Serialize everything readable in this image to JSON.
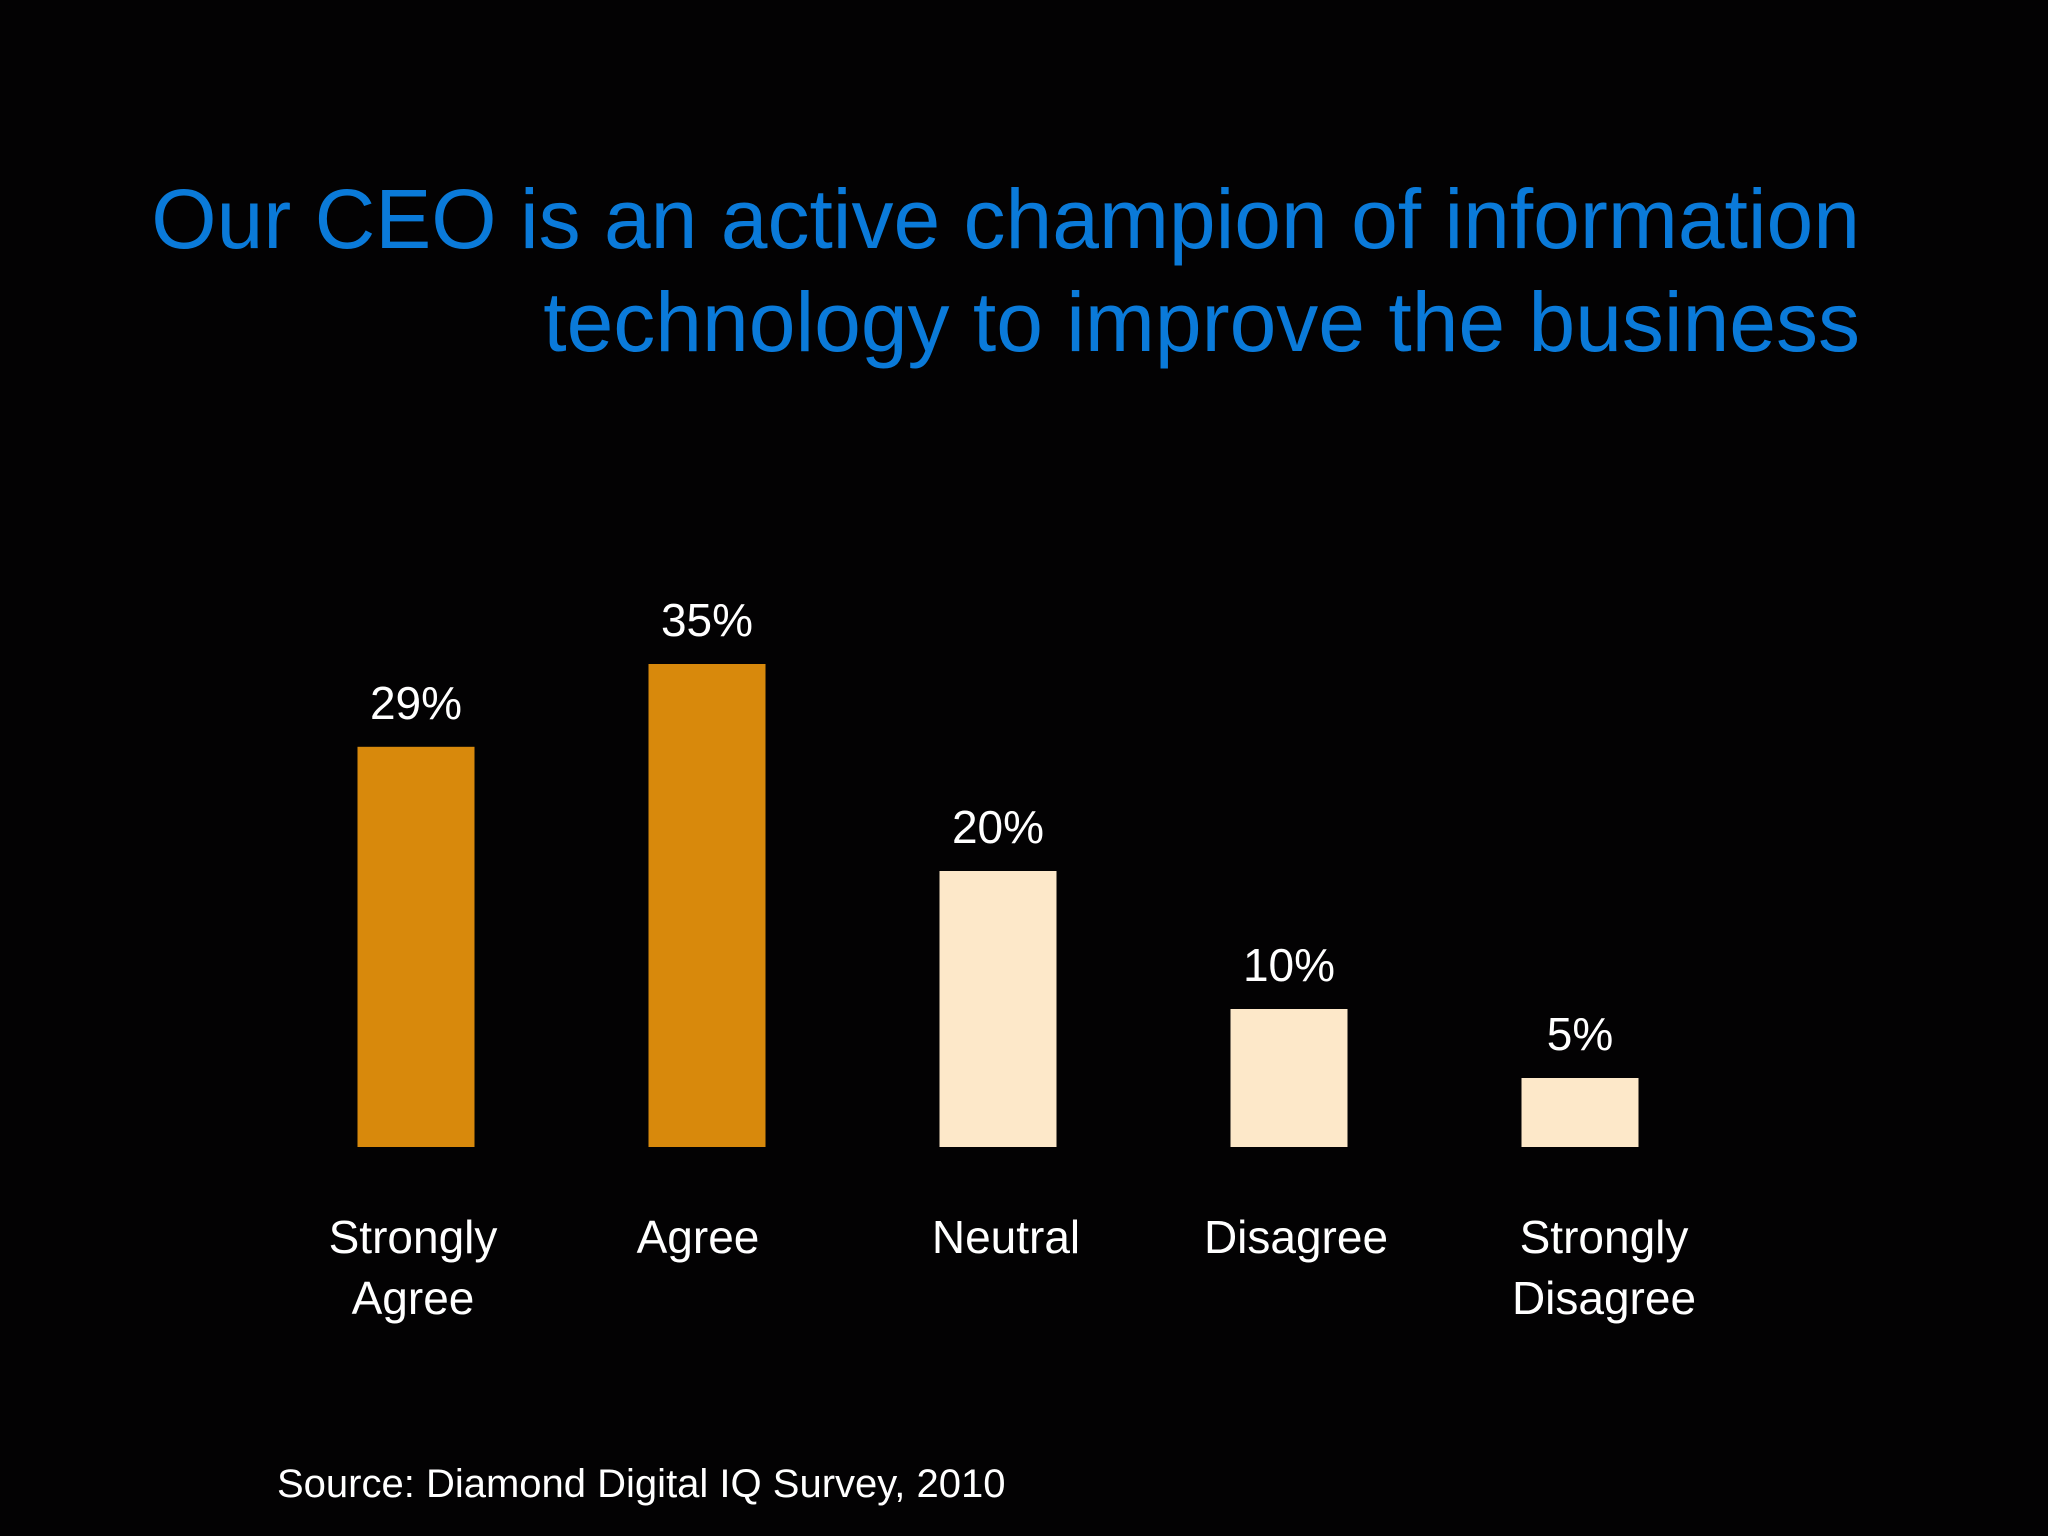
{
  "title": {
    "line1": "Our CEO is an active champion of information",
    "line2": "technology to improve the business"
  },
  "source": "Source: Diamond Digital IQ Survey, 2010",
  "colors": {
    "background": "#030203",
    "title": "#0a7ad9",
    "agree_bars": "#d8890c",
    "other_bars": "#fde8c9",
    "text": "#ffffff"
  },
  "chart_data": {
    "type": "bar",
    "categories": [
      [
        "Strongly",
        "Agree"
      ],
      [
        "Agree"
      ],
      [
        "Neutral"
      ],
      [
        "Disagree"
      ],
      [
        "Strongly",
        "Disagree"
      ]
    ],
    "values": [
      29,
      35,
      20,
      10,
      5
    ],
    "value_labels": [
      "29%",
      "35%",
      "20%",
      "10%",
      "5%"
    ],
    "bar_colors": [
      "#d8890c",
      "#d8890c",
      "#fde8c9",
      "#fde8c9",
      "#fde8c9"
    ],
    "title": "Our CEO is an active champion of information technology to improve the business",
    "xlabel": "",
    "ylabel": "",
    "ylim": [
      0,
      35
    ],
    "grid": false,
    "legend": "none"
  }
}
